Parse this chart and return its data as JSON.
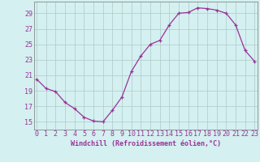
{
  "hours": [
    0,
    1,
    2,
    3,
    4,
    5,
    6,
    7,
    8,
    9,
    10,
    11,
    12,
    13,
    14,
    15,
    16,
    17,
    18,
    19,
    20,
    21,
    22,
    23
  ],
  "values": [
    20.5,
    19.3,
    18.9,
    17.5,
    16.7,
    15.6,
    15.1,
    15.0,
    16.5,
    18.2,
    21.5,
    23.5,
    25.0,
    25.5,
    27.5,
    29.0,
    29.1,
    29.7,
    29.6,
    29.4,
    29.0,
    27.5,
    24.2,
    22.8
  ],
  "line_color": "#993399",
  "marker_color": "#993399",
  "bg_color": "#d4f0f0",
  "grid_color": "#b0c8c8",
  "text_color": "#993399",
  "xlabel": "Windchill (Refroidissement éolien,°C)",
  "ylim": [
    14,
    30.5
  ],
  "xlim": [
    -0.3,
    23.3
  ],
  "yticks": [
    15,
    17,
    19,
    21,
    23,
    25,
    27,
    29
  ],
  "xticks": [
    0,
    1,
    2,
    3,
    4,
    5,
    6,
    7,
    8,
    9,
    10,
    11,
    12,
    13,
    14,
    15,
    16,
    17,
    18,
    19,
    20,
    21,
    22,
    23
  ],
  "font_family": "monospace",
  "tick_fontsize": 6.0,
  "xlabel_fontsize": 6.0
}
